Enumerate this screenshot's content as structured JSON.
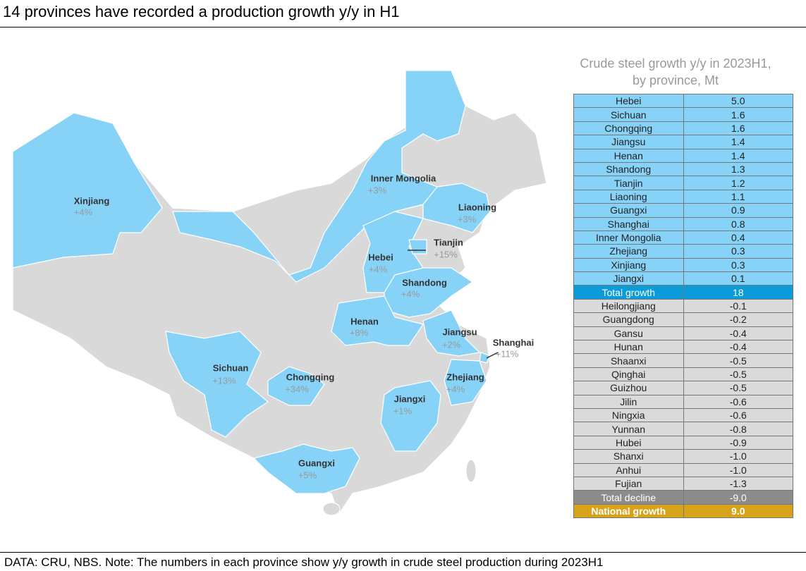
{
  "title": "14 provinces have recorded a production growth y/y in H1",
  "map": {
    "labels": [
      {
        "name": "Xinjiang",
        "growth": "+4%"
      },
      {
        "name": "Inner Mongolia",
        "growth": "+3%"
      },
      {
        "name": "Liaoning",
        "growth": "+3%"
      },
      {
        "name": "Tianjin",
        "growth": "+15%"
      },
      {
        "name": "Hebei",
        "growth": "+4%"
      },
      {
        "name": "Shandong",
        "growth": "+4%"
      },
      {
        "name": "Henan",
        "growth": "+8%"
      },
      {
        "name": "Jiangsu",
        "growth": "+2%"
      },
      {
        "name": "Shanghai",
        "growth": "+11%"
      },
      {
        "name": "Sichuan",
        "growth": "+13%"
      },
      {
        "name": "Chongqing",
        "growth": "+34%"
      },
      {
        "name": "Zhejiang",
        "growth": "+4%"
      },
      {
        "name": "Jiangxi",
        "growth": "+1%"
      },
      {
        "name": "Guangxi",
        "growth": "+5%"
      }
    ]
  },
  "table": {
    "title": "Crude steel growth y/y in 2023H1, by province, Mt",
    "growth_rows": [
      [
        "Hebei",
        "5.0"
      ],
      [
        "Sichuan",
        "1.6"
      ],
      [
        "Chongqing",
        "1.6"
      ],
      [
        "Jiangsu",
        "1.4"
      ],
      [
        "Henan",
        "1.4"
      ],
      [
        "Shandong",
        "1.3"
      ],
      [
        "Tianjin",
        "1.2"
      ],
      [
        "Liaoning",
        "1.1"
      ],
      [
        "Guangxi",
        "0.9"
      ],
      [
        "Shanghai",
        "0.8"
      ],
      [
        "Inner Mongolia",
        "0.4"
      ],
      [
        "Zhejiang",
        "0.3"
      ],
      [
        "Xinjiang",
        "0.3"
      ],
      [
        "Jiangxi",
        "0.1"
      ]
    ],
    "total_growth": [
      "Total growth",
      "18"
    ],
    "decline_rows": [
      [
        "Heilongjiang",
        "-0.1"
      ],
      [
        "Guangdong",
        "-0.2"
      ],
      [
        "Gansu",
        "-0.4"
      ],
      [
        "Hunan",
        "-0.4"
      ],
      [
        "Shaanxi",
        "-0.5"
      ],
      [
        "Qinghai",
        "-0.5"
      ],
      [
        "Guizhou",
        "-0.5"
      ],
      [
        "Jilin",
        "-0.6"
      ],
      [
        "Ningxia",
        "-0.6"
      ],
      [
        "Yunnan",
        "-0.8"
      ],
      [
        "Hubei",
        "-0.9"
      ],
      [
        "Shanxi",
        "-1.0"
      ],
      [
        "Anhui",
        "-1.0"
      ],
      [
        "Fujian",
        "-1.3"
      ]
    ],
    "total_decline": [
      "Total decline",
      "-9.0"
    ],
    "national_growth": [
      "National growth",
      "9.0"
    ]
  },
  "footer": "DATA: CRU, NBS. Note: The numbers in each province show y/y growth in crude steel production during 2023H1"
}
